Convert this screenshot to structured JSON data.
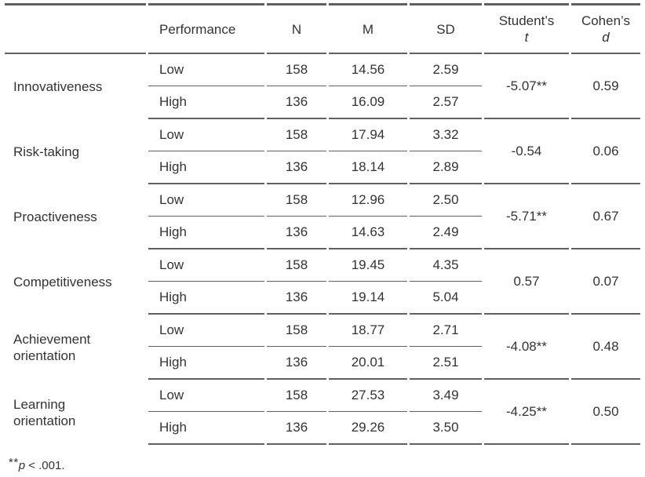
{
  "table": {
    "headers": {
      "construct": "",
      "performance": "Performance",
      "n": "N",
      "m": "M",
      "sd": "SD",
      "t_line1": "Student’s",
      "t_line2": "t",
      "d_line1": "Cohen’s",
      "d_line2": "d"
    },
    "sections": [
      {
        "label": "Innovativeness",
        "t": "-5.07**",
        "d": "0.59",
        "rows": [
          {
            "performance": "Low",
            "n": "158",
            "m": "14.56",
            "sd": "2.59"
          },
          {
            "performance": "High",
            "n": "136",
            "m": "16.09",
            "sd": "2.57"
          }
        ]
      },
      {
        "label": "Risk-taking",
        "t": "-0.54",
        "d": "0.06",
        "rows": [
          {
            "performance": "Low",
            "n": "158",
            "m": "17.94",
            "sd": "3.32"
          },
          {
            "performance": "High",
            "n": "136",
            "m": "18.14",
            "sd": "2.89"
          }
        ]
      },
      {
        "label": "Proactiveness",
        "t": "-5.71**",
        "d": "0.67",
        "rows": [
          {
            "performance": "Low",
            "n": "158",
            "m": "12.96",
            "sd": "2.50"
          },
          {
            "performance": "High",
            "n": "136",
            "m": "14.63",
            "sd": "2.49"
          }
        ]
      },
      {
        "label": "Competitiveness",
        "t": "0.57",
        "d": "0.07",
        "rows": [
          {
            "performance": "Low",
            "n": "158",
            "m": "19.45",
            "sd": "4.35"
          },
          {
            "performance": "High",
            "n": "136",
            "m": "19.14",
            "sd": "5.04"
          }
        ]
      },
      {
        "label": "Achievement\norientation",
        "t": "-4.08**",
        "d": "0.48",
        "rows": [
          {
            "performance": "Low",
            "n": "158",
            "m": "18.77",
            "sd": "2.71"
          },
          {
            "performance": "High",
            "n": "136",
            "m": "20.01",
            "sd": "2.51"
          }
        ]
      },
      {
        "label": "Learning\norientation",
        "t": "-4.25**",
        "d": "0.50",
        "rows": [
          {
            "performance": "Low",
            "n": "158",
            "m": "27.53",
            "sd": "3.49"
          },
          {
            "performance": "High",
            "n": "136",
            "m": "29.26",
            "sd": "3.50"
          }
        ]
      }
    ]
  },
  "footnote": {
    "stars": "**",
    "p_symbol": "p",
    "rest": " < .001."
  },
  "colors": {
    "border": "#606060",
    "text": "#333333",
    "background": "#ffffff"
  }
}
